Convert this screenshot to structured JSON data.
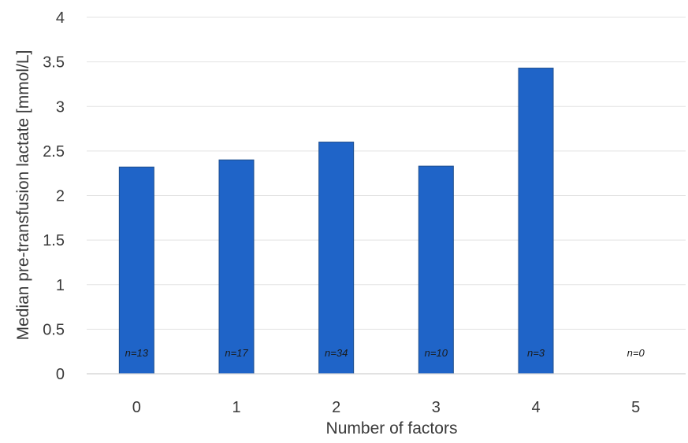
{
  "chart_data": {
    "type": "bar",
    "categories": [
      "0",
      "1",
      "2",
      "3",
      "4",
      "5"
    ],
    "values": [
      2.32,
      2.4,
      2.6,
      2.33,
      3.43,
      0
    ],
    "bar_labels": [
      "n=13",
      "n=17",
      "n=34",
      "n=10",
      "n=3",
      "n=0"
    ],
    "xlabel": "Number of factors",
    "ylabel": "Median pre-transfusion lactate [mmol/L]",
    "ylim": [
      0,
      4
    ],
    "yticks": [
      "0",
      "0.5",
      "1",
      "1.5",
      "2",
      "2.5",
      "3",
      "3.5",
      "4"
    ],
    "ytick_values": [
      0,
      0.5,
      1,
      1.5,
      2,
      2.5,
      3,
      3.5,
      4
    ],
    "grid": true,
    "bar_color": "#1f64c8"
  }
}
